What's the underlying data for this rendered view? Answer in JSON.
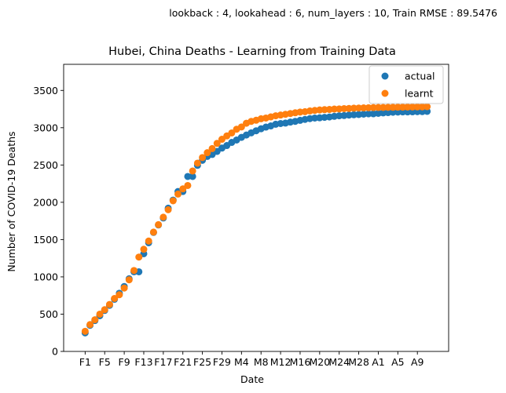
{
  "suptitle": "lookback : 4, lookahead : 6, num_layers : 10, Train RMSE : 89.5476",
  "chart_data": {
    "type": "scatter",
    "title": "Hubei, China Deaths - Learning from Training Data",
    "xlabel": "Date",
    "ylabel": "Number of COVID-19 Deaths",
    "ylim": [
      0,
      3850
    ],
    "yticks": [
      0,
      500,
      1000,
      1500,
      2000,
      2500,
      3000,
      3500
    ],
    "xlim": [
      -4.4,
      74.4
    ],
    "xtick_labels": [
      "F1",
      "F5",
      "F9",
      "F13",
      "F17",
      "F21",
      "F25",
      "F29",
      "M4",
      "M8",
      "M12",
      "M16",
      "M20",
      "M24",
      "M28",
      "A1",
      "A5",
      "A9"
    ],
    "xtick_positions": [
      0,
      4,
      8,
      12,
      16,
      20,
      24,
      28,
      32,
      36,
      40,
      44,
      48,
      52,
      56,
      60,
      64,
      68
    ],
    "legend": "top-right",
    "grid": false,
    "series": [
      {
        "name": "actual",
        "color": "#1f77b4",
        "x": [
          0,
          1,
          2,
          3,
          4,
          5,
          6,
          7,
          8,
          9,
          10,
          11,
          12,
          13,
          14,
          15,
          16,
          17,
          18,
          19,
          20,
          21,
          22,
          23,
          24,
          25,
          26,
          27,
          28,
          29,
          30,
          31,
          32,
          33,
          34,
          35,
          36,
          37,
          38,
          39,
          40,
          41,
          42,
          43,
          44,
          45,
          46,
          47,
          48,
          49,
          50,
          51,
          52,
          53,
          54,
          55,
          56,
          57,
          58,
          59,
          60,
          61,
          62,
          63,
          64,
          65,
          66,
          67,
          68,
          69,
          70
        ],
        "values": [
          249,
          350,
          414,
          479,
          549,
          618,
          699,
          780,
          871,
          974,
          1068,
          1068,
          1310,
          1457,
          1596,
          1696,
          1789,
          1921,
          2029,
          2144,
          2144,
          2346,
          2346,
          2495,
          2563,
          2615,
          2641,
          2682,
          2727,
          2761,
          2803,
          2835,
          2871,
          2902,
          2931,
          2959,
          2986,
          3008,
          3024,
          3046,
          3056,
          3062,
          3075,
          3085,
          3099,
          3111,
          3122,
          3130,
          3133,
          3139,
          3144,
          3153,
          3160,
          3163,
          3169,
          3174,
          3177,
          3182,
          3186,
          3187,
          3193,
          3199,
          3203,
          3207,
          3210,
          3212,
          3212,
          3213,
          3215,
          3216,
          3219
        ]
      },
      {
        "name": "learnt",
        "color": "#ff7f0e",
        "x": [
          0,
          1,
          2,
          3,
          4,
          5,
          6,
          7,
          8,
          9,
          10,
          11,
          12,
          13,
          14,
          15,
          16,
          17,
          18,
          19,
          20,
          21,
          22,
          23,
          24,
          25,
          26,
          27,
          28,
          29,
          30,
          31,
          32,
          33,
          34,
          35,
          36,
          37,
          38,
          39,
          40,
          41,
          42,
          43,
          44,
          45,
          46,
          47,
          48,
          49,
          50,
          51,
          52,
          53,
          54,
          55,
          56,
          57,
          58,
          59,
          60,
          61,
          62,
          63,
          64,
          65,
          66,
          67,
          68,
          69,
          70
        ],
        "values": [
          270,
          360,
          425,
          500,
          560,
          630,
          710,
          760,
          850,
          960,
          1085,
          1265,
          1370,
          1480,
          1600,
          1700,
          1800,
          1900,
          2020,
          2110,
          2180,
          2225,
          2420,
          2525,
          2600,
          2665,
          2720,
          2790,
          2845,
          2890,
          2930,
          2980,
          3010,
          3060,
          3085,
          3100,
          3120,
          3130,
          3145,
          3160,
          3170,
          3180,
          3190,
          3200,
          3210,
          3215,
          3225,
          3232,
          3238,
          3242,
          3245,
          3250,
          3252,
          3256,
          3258,
          3262,
          3264,
          3266,
          3268,
          3270,
          3271,
          3272,
          3273,
          3274,
          3275,
          3276,
          3277,
          3278,
          3279,
          3280,
          3282
        ]
      }
    ]
  }
}
